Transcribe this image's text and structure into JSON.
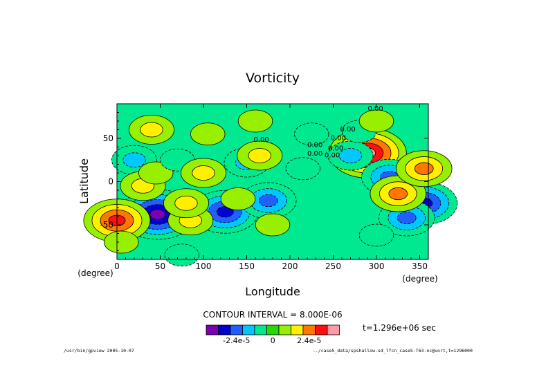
{
  "chart_data": {
    "type": "heatmap",
    "title": "Vorticity",
    "xlabel": "Longitude",
    "ylabel": "Latitude",
    "x_unit": "(degree)",
    "y_unit": "(degree)",
    "xlim": [
      0,
      360
    ],
    "ylim": [
      -90,
      90
    ],
    "x_ticks": [
      0,
      50,
      100,
      150,
      200,
      250,
      300,
      350
    ],
    "y_ticks": [
      -50,
      0,
      50
    ],
    "contour_interval_text": "CONTOUR INTERVAL = 8.000E-06",
    "contour_line_labels": [
      "0.00",
      "0.00",
      "0.00",
      "0.00",
      "0.00",
      "0.00",
      "0.00",
      "0.00"
    ],
    "colorbar": {
      "colors": [
        "#7a00b0",
        "#0000d0",
        "#2060ff",
        "#00c8ff",
        "#00e890",
        "#28d800",
        "#98f000",
        "#fff000",
        "#ff7800",
        "#ff1010",
        "#ff9aa8"
      ],
      "tick_labels": [
        "-2.4e-5",
        "0",
        "2.4e-5"
      ],
      "tick_values": [
        -2.4e-05,
        0,
        2.4e-05
      ]
    },
    "field_features": [
      {
        "lon": 47,
        "lat": -38,
        "value": -4.4e-05
      },
      {
        "lon": 290,
        "lat": 33,
        "value": 4.4e-05
      },
      {
        "lon": 0,
        "lat": -45,
        "value": 3e-05
      },
      {
        "lon": 40,
        "lat": 60,
        "value": 1.8e-05
      },
      {
        "lon": 125,
        "lat": -35,
        "value": -2.8e-05
      },
      {
        "lon": 175,
        "lat": -22,
        "value": -2.6e-05
      },
      {
        "lon": 315,
        "lat": 5,
        "value": -2.6e-05
      },
      {
        "lon": 355,
        "lat": -25,
        "value": -2.8e-05
      },
      {
        "lon": 335,
        "lat": -42,
        "value": -2e-05
      },
      {
        "lon": 325,
        "lat": -14,
        "value": 2e-05
      },
      {
        "lon": 355,
        "lat": 15,
        "value": 2e-05
      },
      {
        "lon": 270,
        "lat": 30,
        "value": -1.6e-05
      },
      {
        "lon": 280,
        "lat": 58,
        "value": -8e-06
      },
      {
        "lon": 225,
        "lat": 55,
        "value": -6e-06
      },
      {
        "lon": 20,
        "lat": 25,
        "value": -1.6e-05
      },
      {
        "lon": 30,
        "lat": -5,
        "value": 1.8e-05
      },
      {
        "lon": 45,
        "lat": 10,
        "value": 8e-06
      },
      {
        "lon": 85,
        "lat": -45,
        "value": 1.8e-05
      },
      {
        "lon": 80,
        "lat": -25,
        "value": 1.5e-05
      },
      {
        "lon": 70,
        "lat": 25,
        "value": -1e-05
      },
      {
        "lon": 100,
        "lat": 10,
        "value": 1.4e-05
      },
      {
        "lon": 150,
        "lat": 22,
        "value": -1.2e-05
      },
      {
        "lon": 165,
        "lat": 30,
        "value": 1.6e-05
      },
      {
        "lon": 215,
        "lat": 15,
        "value": -8e-06
      },
      {
        "lon": 180,
        "lat": -50,
        "value": 9e-06
      },
      {
        "lon": 140,
        "lat": -20,
        "value": 1e-05
      },
      {
        "lon": 105,
        "lat": 55,
        "value": 9e-06
      },
      {
        "lon": 160,
        "lat": 70,
        "value": 9e-06
      },
      {
        "lon": 300,
        "lat": 70,
        "value": 8e-06
      },
      {
        "lon": 75,
        "lat": -85,
        "value": -6e-06
      },
      {
        "lon": 300,
        "lat": -62,
        "value": -7e-06
      },
      {
        "lon": 5,
        "lat": -70,
        "value": 1e-05
      }
    ]
  },
  "info": {
    "time_text": "t=1.296e+06 sec",
    "footer_left": "/usr/bin/gpview  2005-10-07",
    "footer_right": "../case5_data/spshallow-sd_lfcn_case5-T63.nc@vort,t=1296000"
  }
}
